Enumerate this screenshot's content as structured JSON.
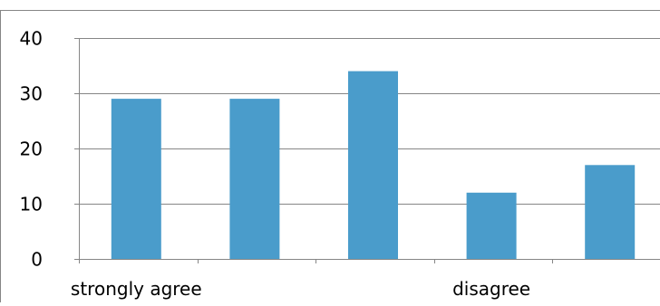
{
  "chart_data": {
    "type": "bar",
    "categories": [
      "strongly agree",
      "",
      "",
      "disagree",
      ""
    ],
    "category_labels_shown": [
      "strongly agree",
      "disagree"
    ],
    "series": [
      {
        "values": [
          29,
          29,
          34,
          12,
          17
        ]
      }
    ],
    "values": [
      29,
      29,
      34,
      12,
      17
    ],
    "yticks": [
      "0",
      "10",
      "20",
      "30",
      "40"
    ],
    "ylim": [
      0,
      40
    ],
    "title": "",
    "xlabel": "",
    "ylabel": "",
    "grid": true,
    "legend": "none",
    "colors": {
      "bar": "#4a9ccb",
      "grid": "#868686",
      "axis": "#868686",
      "border": "#868686"
    }
  }
}
